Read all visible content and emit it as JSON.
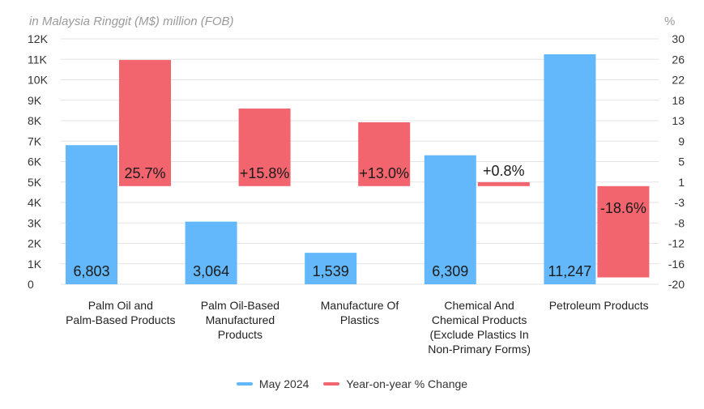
{
  "chart_data": {
    "type": "bar",
    "unit_left": "in Malaysia Ringgit (M$) million (FOB)",
    "unit_right": "%",
    "categories": [
      [
        "Palm Oil and",
        "Palm-Based Products"
      ],
      [
        "Palm Oil-Based",
        "Manufactured",
        "Products"
      ],
      [
        "Manufacture Of",
        "Plastics"
      ],
      [
        "Chemical And",
        "Chemical Products",
        "(Exclude Plastics In",
        "Non-Primary Forms)"
      ],
      [
        "Petroleum Products"
      ]
    ],
    "left_axis": {
      "ticks": [
        "12K",
        "11K",
        "10K",
        "9K",
        "8K",
        "7K",
        "6K",
        "5K",
        "4K",
        "3K",
        "2K",
        "1K",
        "0"
      ],
      "ylim": [
        0,
        12000
      ]
    },
    "right_axis": {
      "ticks": [
        "30",
        "26",
        "22",
        "18",
        "13",
        "9",
        "5",
        "1",
        "-3",
        "-8",
        "-12",
        "-16",
        "-20"
      ],
      "ylim": [
        -20,
        30
      ]
    },
    "series": [
      {
        "name": "May 2024",
        "axis": "left",
        "color": "#63b8fc",
        "values": [
          6803,
          3064,
          1539,
          6309,
          11247
        ],
        "labels": [
          "6,803",
          "3,064",
          "1,539",
          "6,309",
          "11,247"
        ]
      },
      {
        "name": "Year-on-year % Change",
        "axis": "right",
        "color": "#f2646e",
        "values": [
          25.7,
          15.8,
          13.0,
          0.8,
          -18.6
        ],
        "labels": [
          "25.7%",
          "+15.8%",
          "+13.0%",
          "+0.8%",
          "-18.6%"
        ]
      }
    ],
    "grid": true,
    "legend_position": "bottom"
  }
}
